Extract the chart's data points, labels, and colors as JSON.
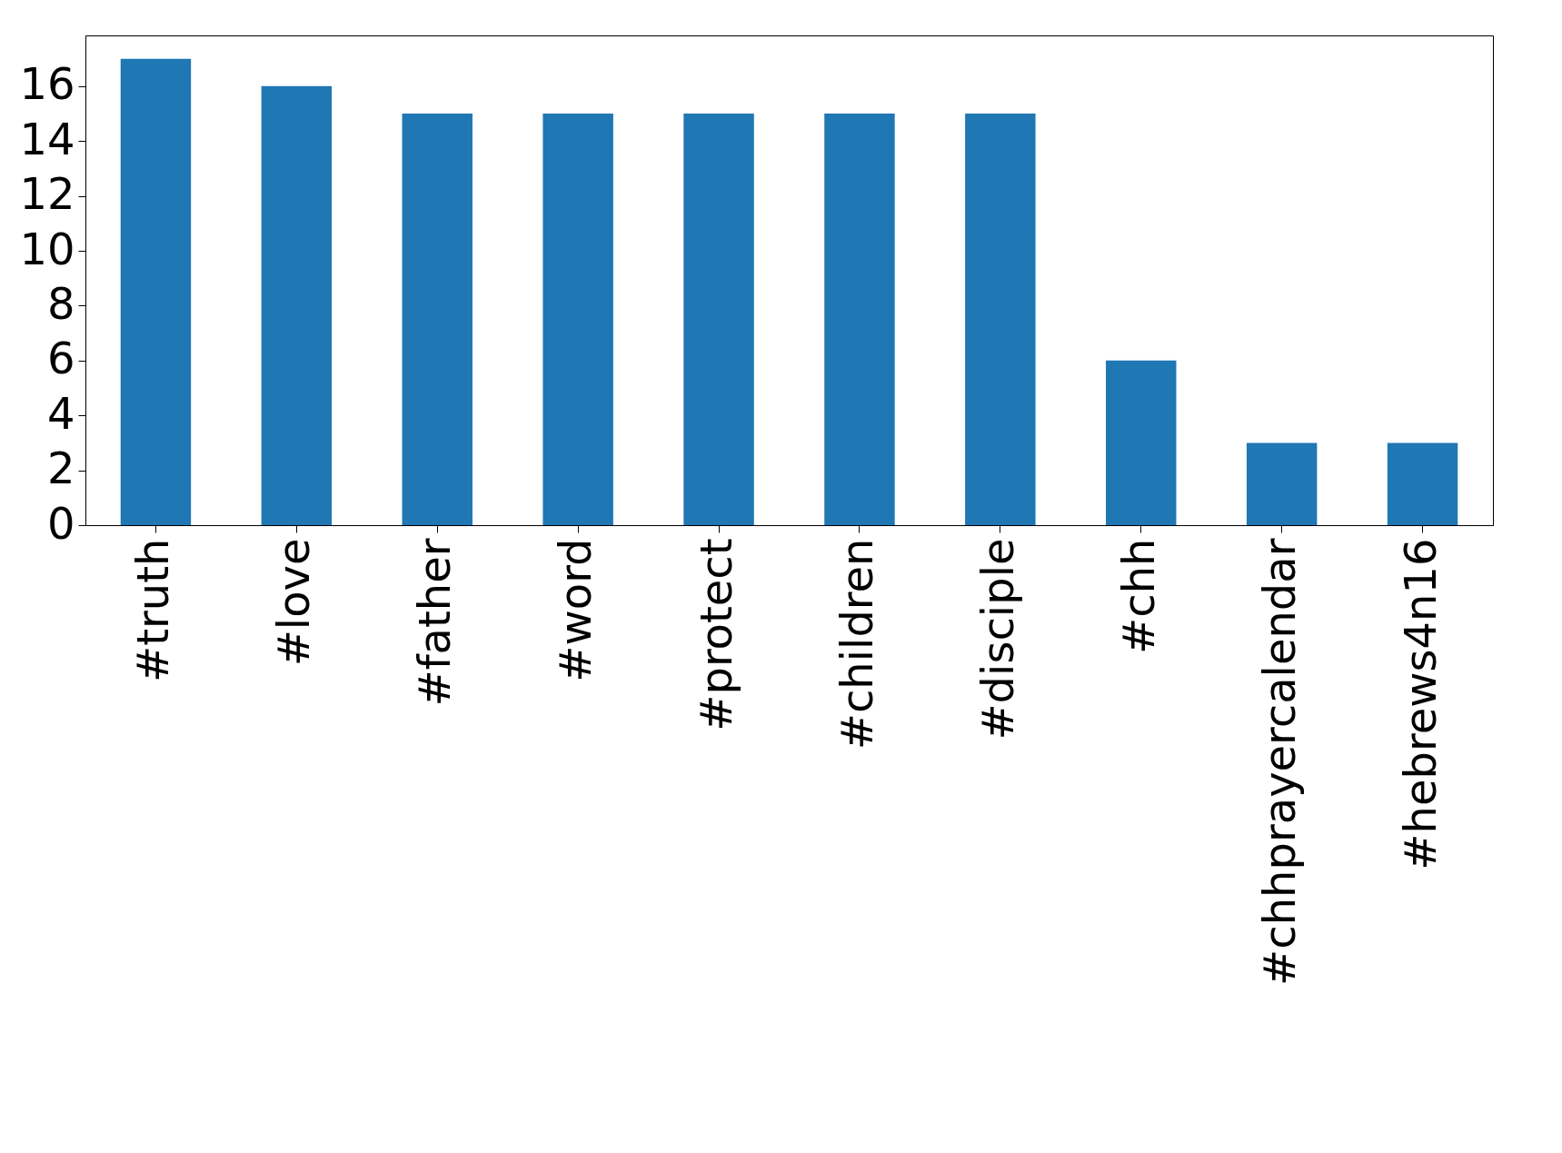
{
  "chart_data": {
    "type": "bar",
    "categories": [
      "#truth",
      "#love",
      "#father",
      "#word",
      "#protect",
      "#children",
      "#disciple",
      "#chh",
      "#chhprayercalendar",
      "#hebrews4n16"
    ],
    "values": [
      17,
      16,
      15,
      15,
      15,
      15,
      15,
      6,
      3,
      3
    ],
    "color": "#1f77b4",
    "ylim": [
      0,
      17.85
    ],
    "yticks": [
      0,
      2,
      4,
      6,
      8,
      10,
      12,
      14,
      16
    ],
    "grid": false
  }
}
